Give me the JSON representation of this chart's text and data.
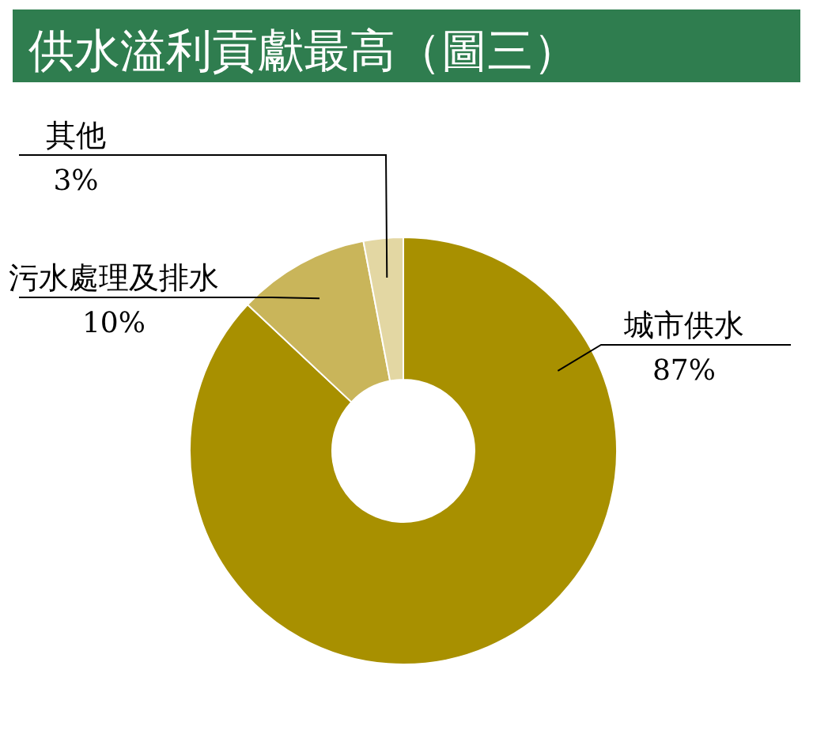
{
  "chart_data": {
    "type": "donut",
    "title": "供水溢利貢獻最高（圖三）",
    "categories": [
      "城市供水",
      "污水處理及排水",
      "其他"
    ],
    "values": [
      87,
      10,
      3
    ],
    "colors": [
      "#a89000",
      "#c9b55a",
      "#e3d7a3"
    ],
    "value_labels": [
      "87%",
      "10%",
      "3%"
    ]
  }
}
